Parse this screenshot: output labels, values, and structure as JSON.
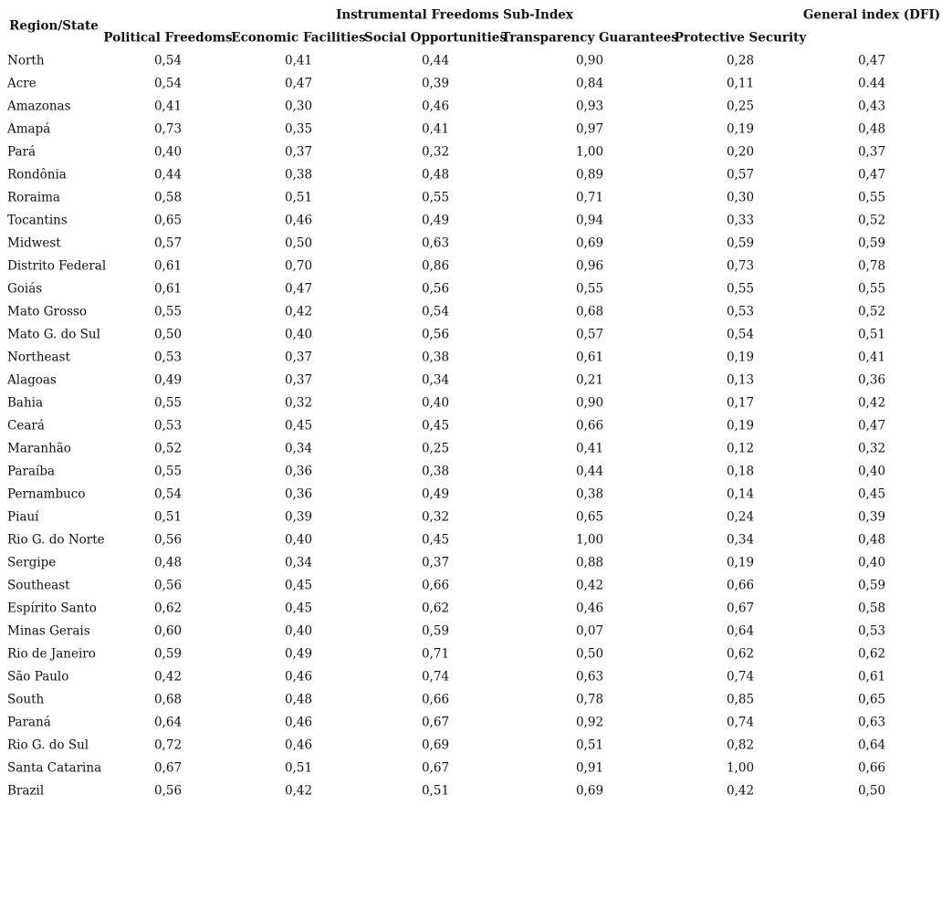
{
  "table": {
    "header": {
      "region": "Region/State",
      "group": "Instrumental Freedoms Sub-Index",
      "general": "General index (DFI)",
      "columns": [
        "Political Freedoms",
        "Economic Facilities",
        "Social Opportunities",
        "Transparency Guarantees",
        "Protective Security"
      ]
    },
    "rows": [
      [
        "North",
        "0,54",
        "0,41",
        "0,44",
        "0,90",
        "0,28",
        "0,47"
      ],
      [
        "Acre",
        "0,54",
        "0,47",
        "0,39",
        "0,84",
        "0,11",
        "0.44"
      ],
      [
        "Amazonas",
        "0,41",
        "0,30",
        "0,46",
        "0,93",
        "0,25",
        "0,43"
      ],
      [
        "Amapá",
        "0,73",
        "0,35",
        "0,41",
        "0,97",
        "0,19",
        "0,48"
      ],
      [
        "Pará",
        "0,40",
        "0,37",
        "0,32",
        "1,00",
        "0,20",
        "0,37"
      ],
      [
        "Rondônia",
        "0,44",
        "0,38",
        "0,48",
        "0,89",
        "0,57",
        "0,47"
      ],
      [
        "Roraima",
        "0,58",
        "0,51",
        "0,55",
        "0,71",
        "0,30",
        "0,55"
      ],
      [
        "Tocantins",
        "0,65",
        "0,46",
        "0,49",
        "0,94",
        "0,33",
        "0,52"
      ],
      [
        "Midwest",
        "0,57",
        "0,50",
        "0,63",
        "0,69",
        "0,59",
        "0,59"
      ],
      [
        "Distrito Federal",
        "0,61",
        "0,70",
        "0,86",
        "0,96",
        "0,73",
        "0,78"
      ],
      [
        "Goiás",
        "0,61",
        "0,47",
        "0,56",
        "0,55",
        "0,55",
        "0,55"
      ],
      [
        "Mato Grosso",
        "0,55",
        "0,42",
        "0,54",
        "0,68",
        "0,53",
        "0,52"
      ],
      [
        "Mato G. do Sul",
        "0,50",
        "0,40",
        "0,56",
        "0,57",
        "0,54",
        "0,51"
      ],
      [
        "Northeast",
        "0,53",
        "0,37",
        "0,38",
        "0,61",
        "0,19",
        "0,41"
      ],
      [
        "Alagoas",
        "0,49",
        "0,37",
        "0,34",
        "0,21",
        "0,13",
        "0,36"
      ],
      [
        "Bahia",
        "0,55",
        "0,32",
        "0,40",
        "0,90",
        "0,17",
        "0,42"
      ],
      [
        "Ceará",
        "0,53",
        "0,45",
        "0,45",
        "0,66",
        "0,19",
        "0,47"
      ],
      [
        "Maranhão",
        "0,52",
        "0,34",
        "0,25",
        "0,41",
        "0,12",
        "0,32"
      ],
      [
        "Paraíba",
        "0,55",
        "0,36",
        "0,38",
        "0,44",
        "0,18",
        "0,40"
      ],
      [
        "Pernambuco",
        "0,54",
        "0,36",
        "0,49",
        "0,38",
        "0,14",
        "0,45"
      ],
      [
        "Piauí",
        "0,51",
        "0,39",
        "0,32",
        "0,65",
        "0,24",
        "0,39"
      ],
      [
        "Rio G. do Norte",
        "0,56",
        "0,40",
        "0,45",
        "1,00",
        "0,34",
        "0,48"
      ],
      [
        "Sergipe",
        "0,48",
        "0,34",
        "0,37",
        "0,88",
        "0,19",
        "0,40"
      ],
      [
        "Southeast",
        "0,56",
        "0,45",
        "0,66",
        "0,42",
        "0,66",
        "0,59"
      ],
      [
        "Espírito Santo",
        "0,62",
        "0,45",
        "0,62",
        "0,46",
        "0,67",
        "0,58"
      ],
      [
        "Minas Gerais",
        "0,60",
        "0,40",
        "0,59",
        "0,07",
        "0,64",
        "0,53"
      ],
      [
        "Rio de Janeiro",
        "0,59",
        "0,49",
        "0,71",
        "0,50",
        "0,62",
        "0,62"
      ],
      [
        "São Paulo",
        "0,42",
        "0,46",
        "0,74",
        "0,63",
        "0,74",
        "0,61"
      ],
      [
        "South",
        "0,68",
        "0,48",
        "0,66",
        "0,78",
        "0,85",
        "0,65"
      ],
      [
        "Paraná",
        "0,64",
        "0,46",
        "0,67",
        "0,92",
        "0,74",
        "0,63"
      ],
      [
        "Rio G. do Sul",
        "0,72",
        "0,46",
        "0,69",
        "0,51",
        "0,82",
        "0,64"
      ],
      [
        "Santa Catarina",
        "0,67",
        "0,51",
        "0,67",
        "0,91",
        "1,00",
        "0,66"
      ],
      [
        "Brazil",
        "0,56",
        "0,42",
        "0,51",
        "0,69",
        "0,42",
        "0,50"
      ]
    ]
  }
}
